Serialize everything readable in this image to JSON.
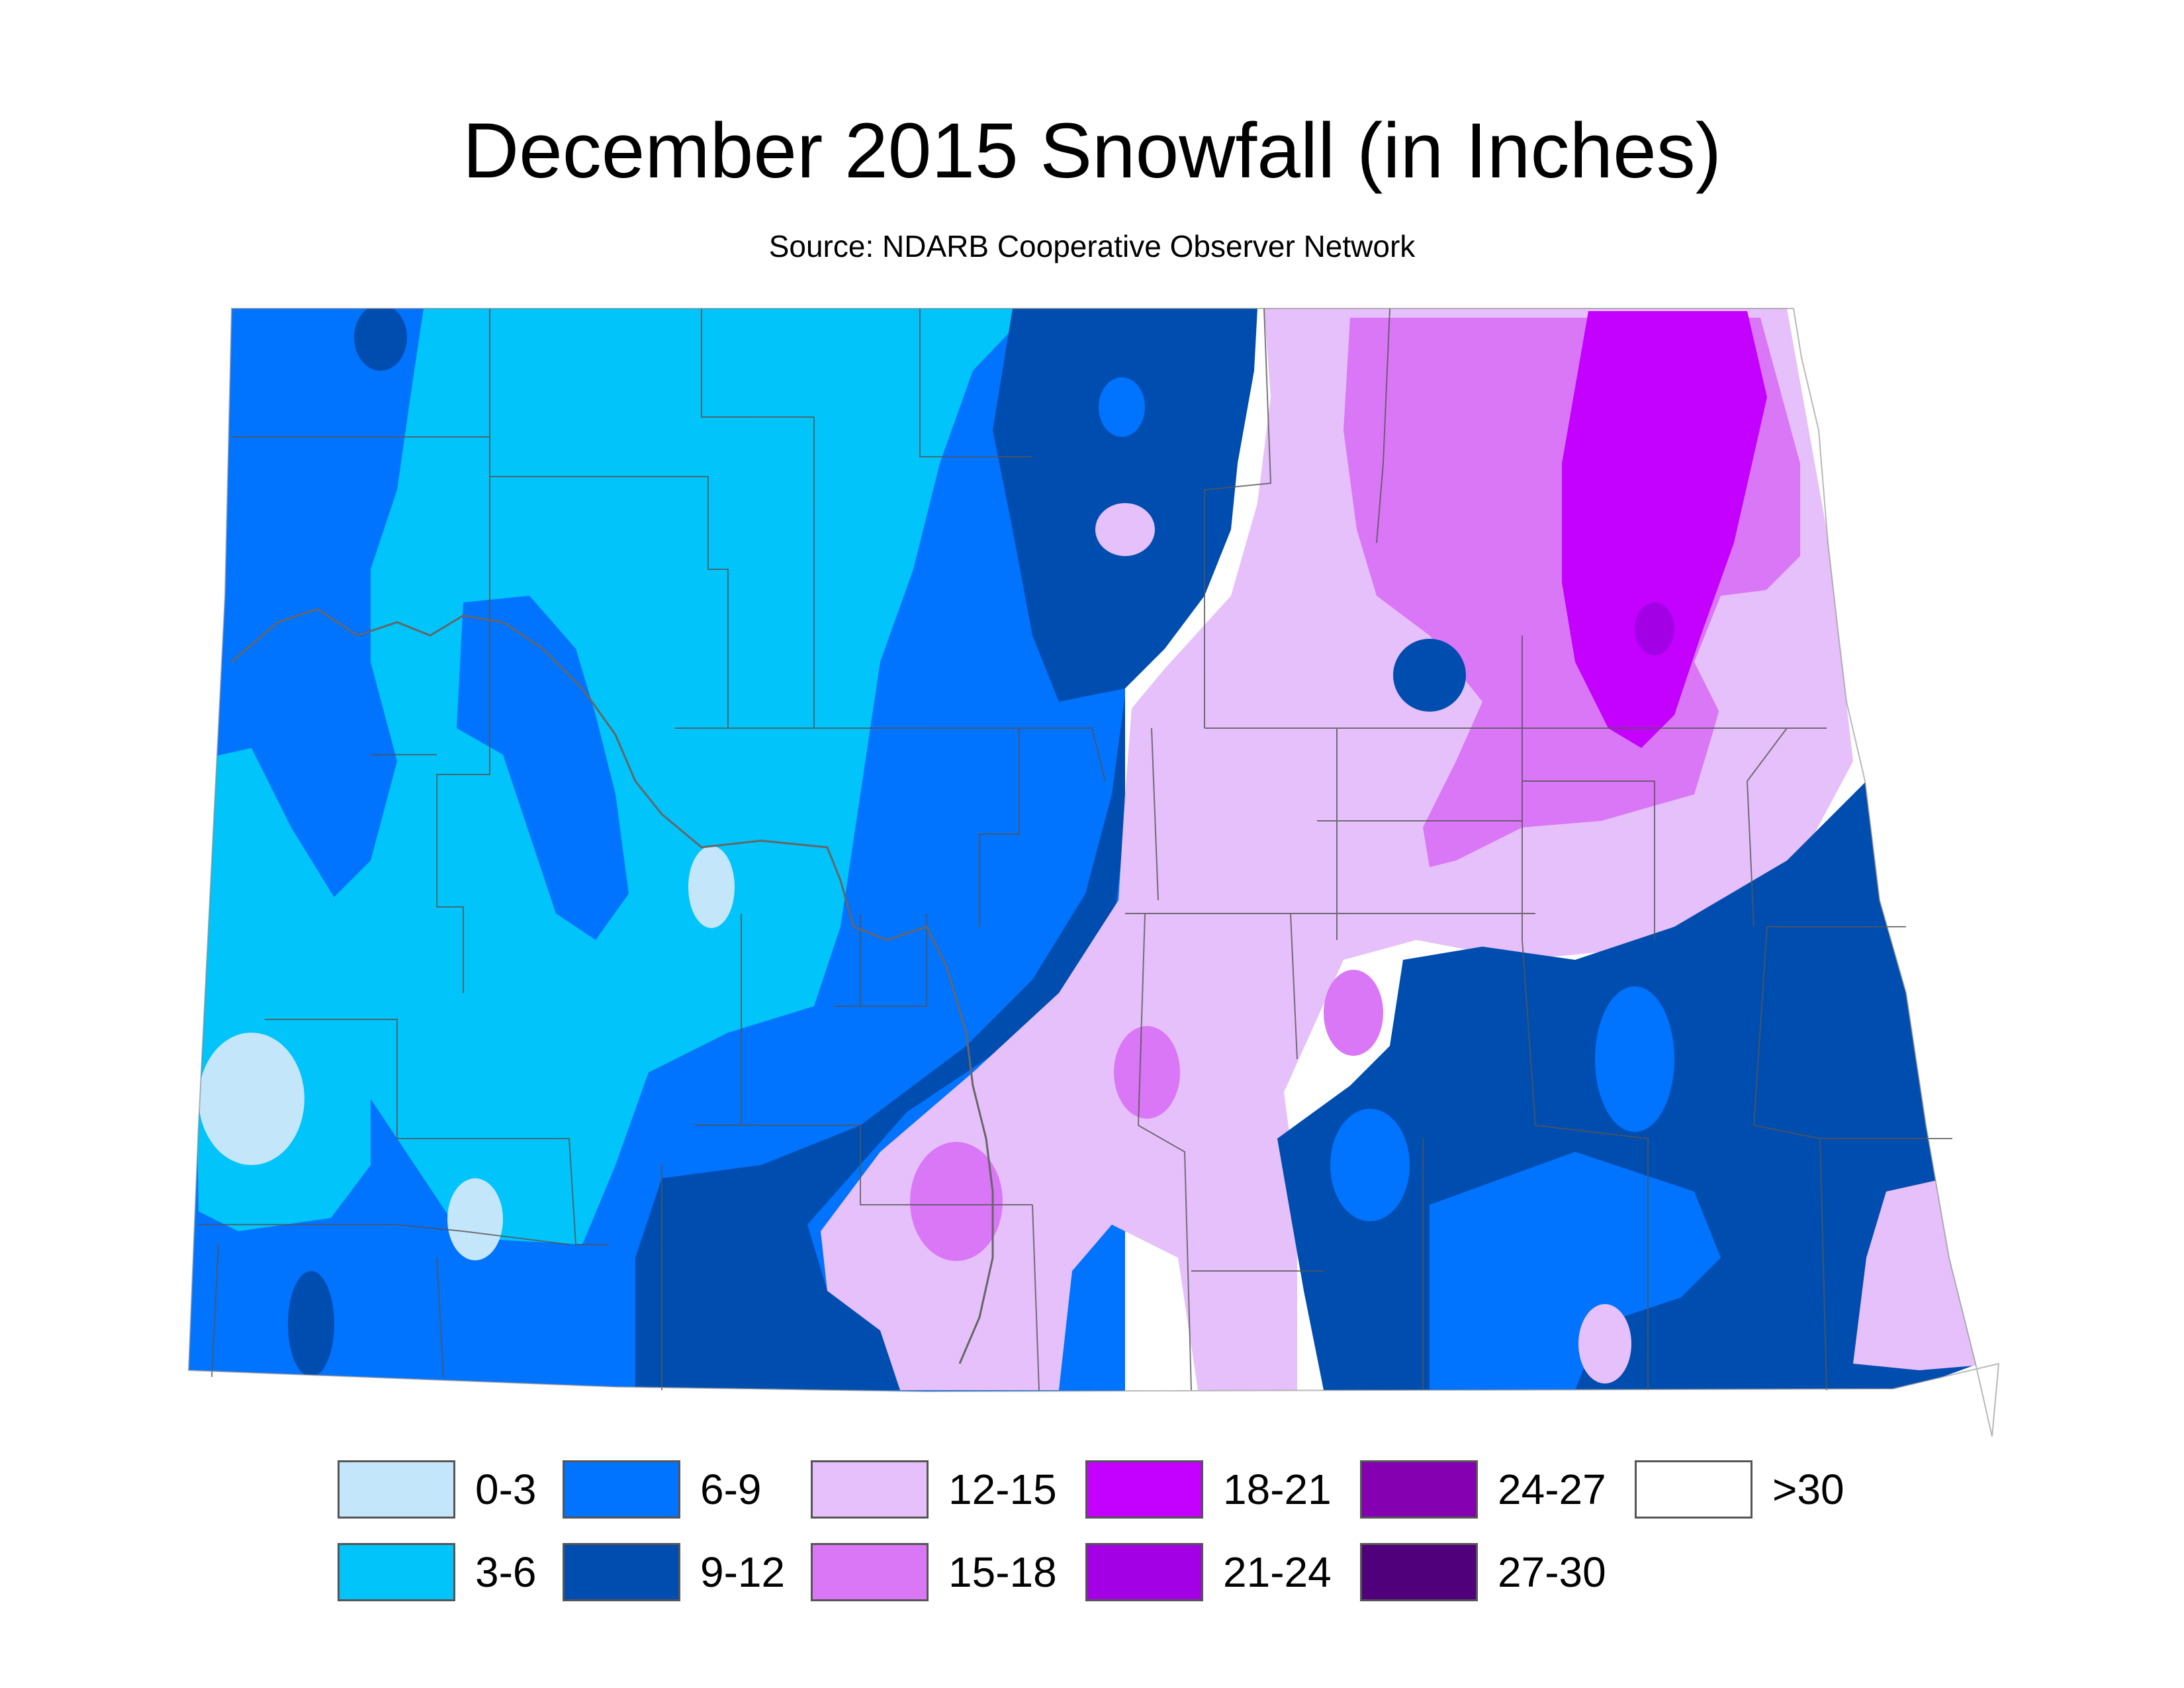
{
  "title": "December 2015 Snowfall (in Inches)",
  "subtitle": "Source: NDARB Cooperative Observer Network",
  "legend": {
    "items": [
      {
        "label": "0-3",
        "color": "#c4e6fa"
      },
      {
        "label": "3-6",
        "color": "#00c4fa"
      },
      {
        "label": "6-9",
        "color": "#0073ff"
      },
      {
        "label": "9-12",
        "color": "#004db0"
      },
      {
        "label": "12-15",
        "color": "#e6c0fa"
      },
      {
        "label": "15-18",
        "color": "#d977f7"
      },
      {
        "label": "18-21",
        "color": "#c400ff"
      },
      {
        "label": "21-24",
        "color": "#a400e6"
      },
      {
        "label": "24-27",
        "color": "#8400b0"
      },
      {
        "label": "27-30",
        "color": "#4f007a"
      },
      {
        "label": ">30",
        "color": "#ffffff"
      }
    ]
  }
}
